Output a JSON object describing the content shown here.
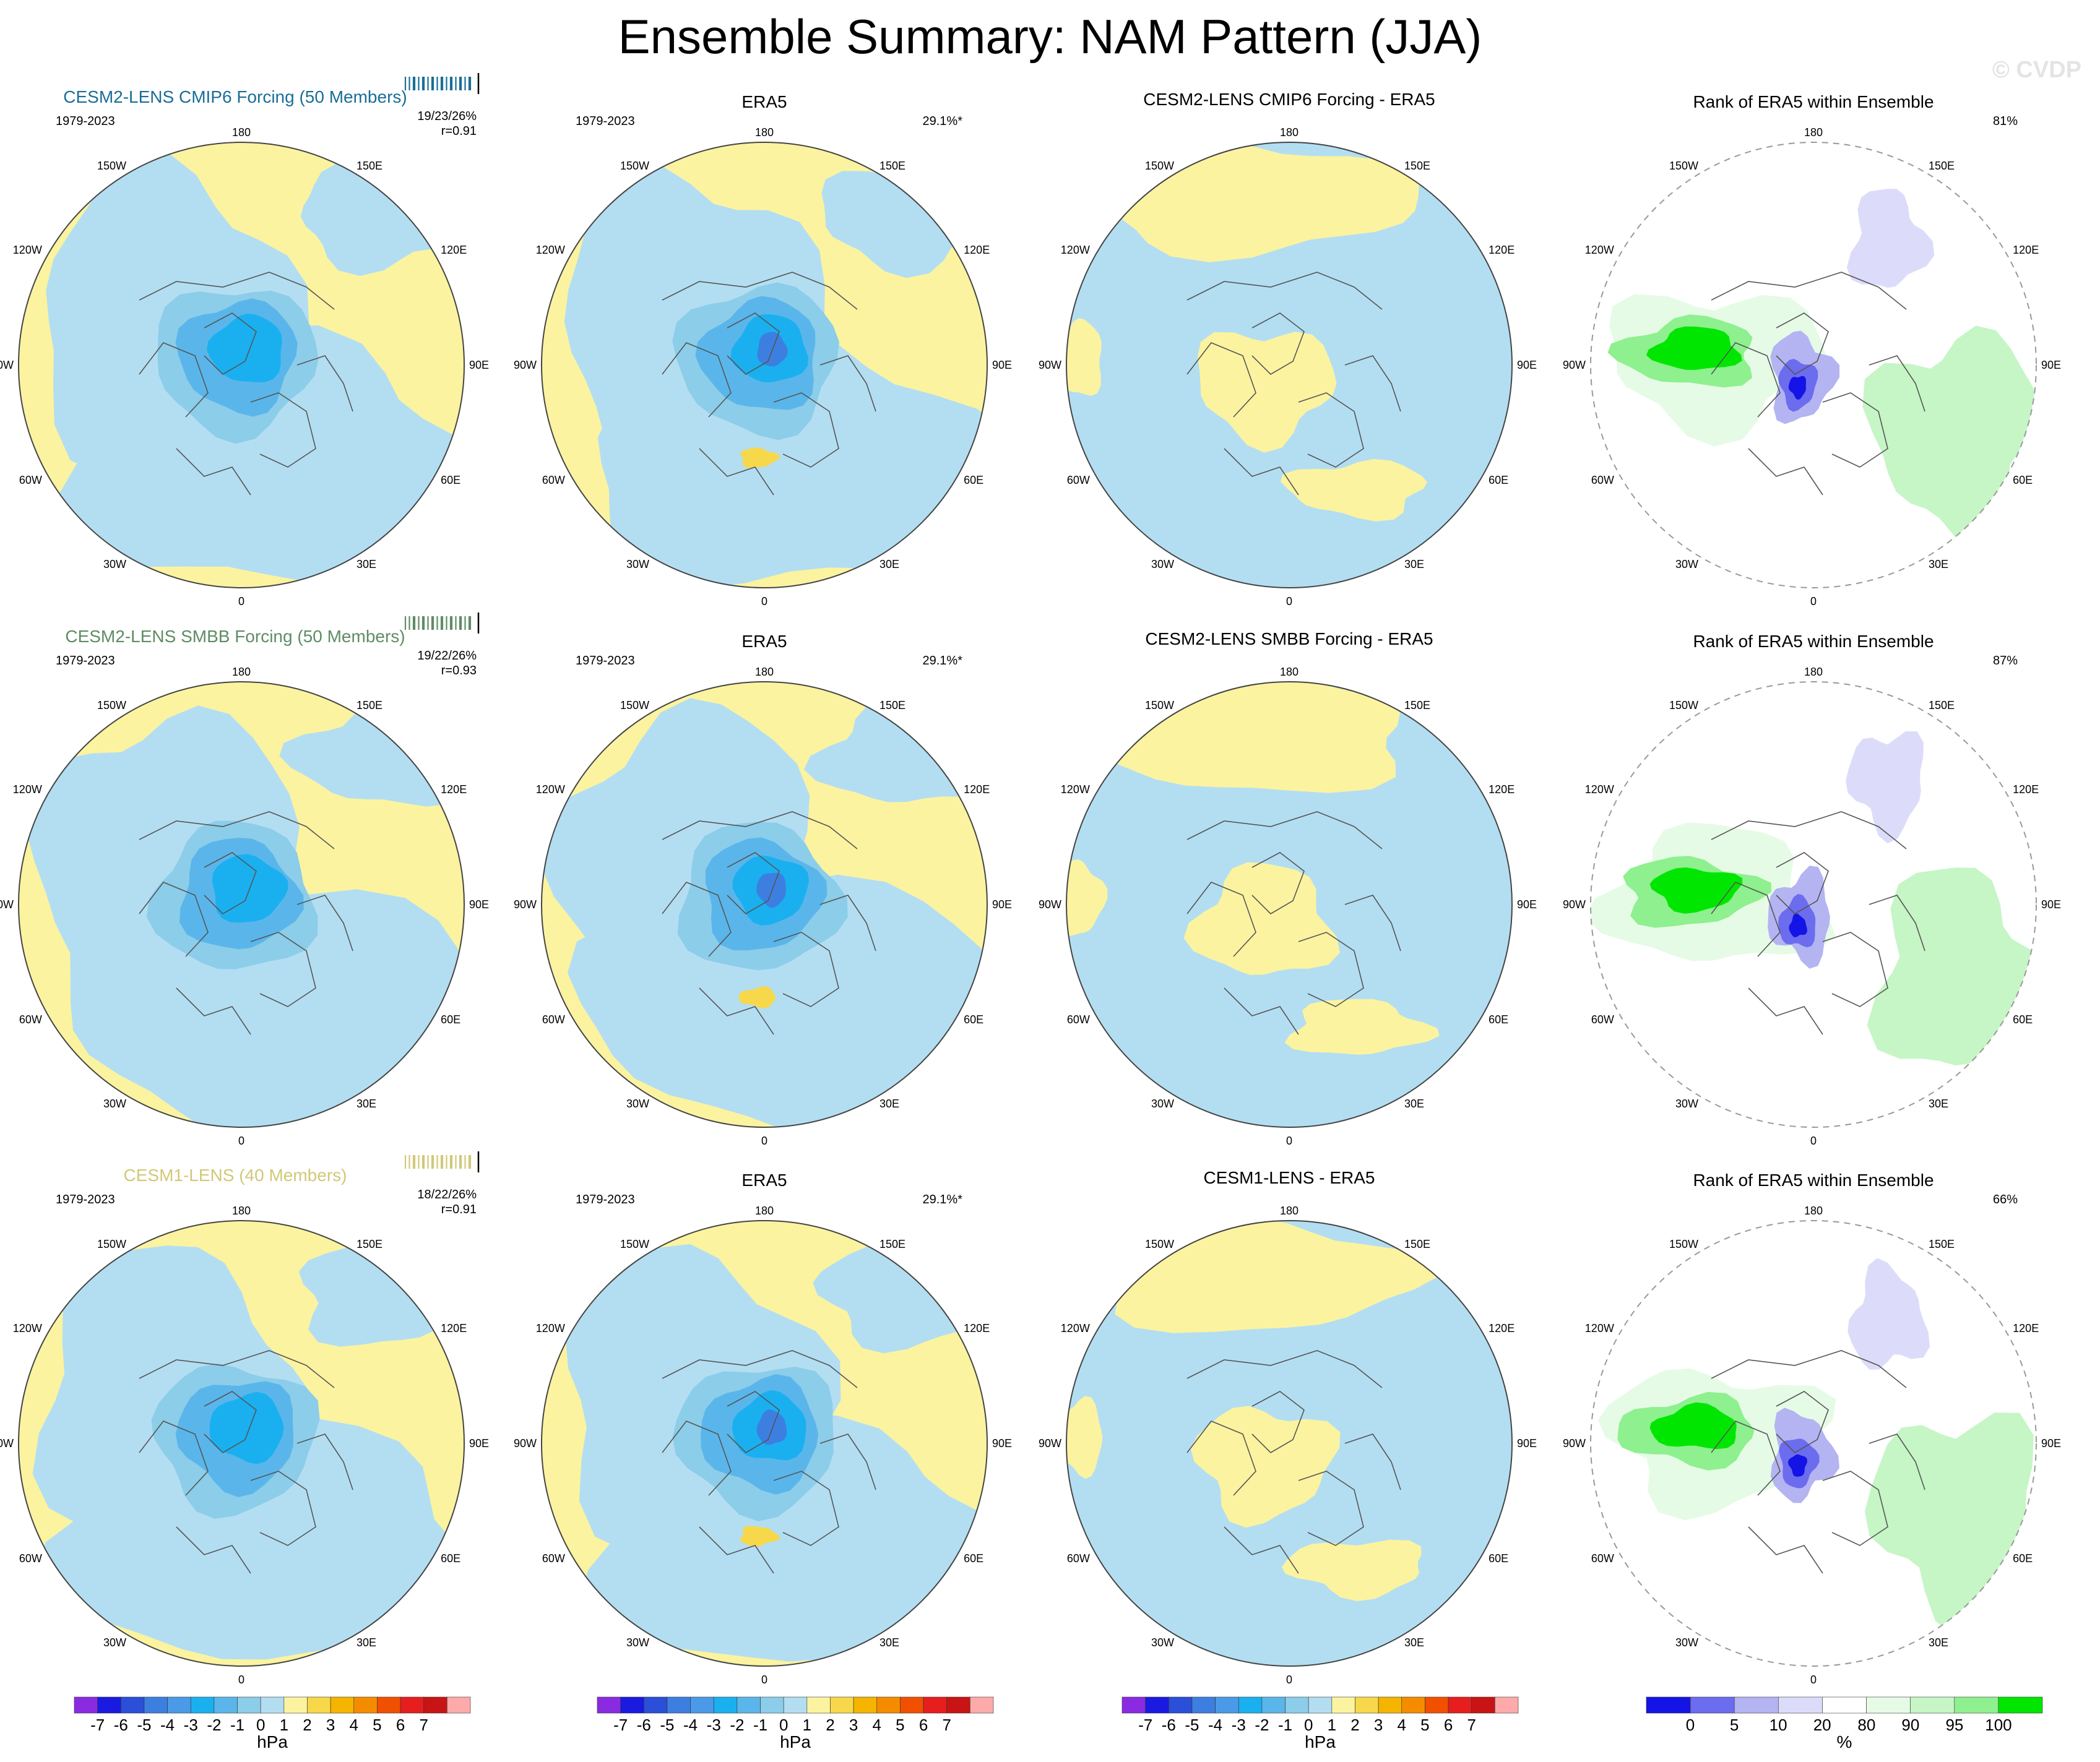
{
  "title": "Ensemble Summary: NAM Pattern (JJA)",
  "watermark": "© CVDP",
  "colors": {
    "land_yellow": "#fbf3a0",
    "sea_blue": "#b3def2",
    "neg1": "#8ccde9",
    "neg2": "#5ab6ea",
    "neg3": "#1ab0f0",
    "neg4": "#3d7fe0",
    "pos1": "#f7d84a",
    "rank_white": "#ffffff",
    "rank_g1": "#e6fbe6",
    "rank_g2": "#c6f5c6",
    "rank_g3": "#8ef08e",
    "rank_g4": "#00e600",
    "rank_b1": "#dcdcfa",
    "rank_b2": "#b4b4f2",
    "rank_b3": "#6c6cee",
    "rank_b4": "#1414e6",
    "cesm2_cmip6": "#1a6e96",
    "cesm2_smbb": "#5f8c64",
    "cesm1": "#d2c878"
  },
  "longitude_labels": {
    "top": "180",
    "bottom": "0",
    "left": "90W",
    "right": "90E",
    "upper_left_outer": "120W",
    "upper_left_inner": "150W",
    "upper_right_inner": "150E",
    "upper_right_outer": "120E",
    "lower_left_outer": "60W",
    "lower_left_inner": "30W",
    "lower_right_inner": "30E",
    "lower_right_outer": "60E"
  },
  "rows": [
    {
      "ensemble_title": "CESM2-LENS CMIP6 Forcing (50 Members)",
      "title_color": "#1a6e96",
      "period": "1979-2023",
      "ensemble_stats": "19/23/26%",
      "ensemble_corr": "r=0.91",
      "obs_title": "ERA5",
      "obs_period": "1979-2023",
      "obs_pct": "29.1%*",
      "diff_title": "CESM2-LENS CMIP6 Forcing - ERA5",
      "rank_title": "Rank of ERA5 within Ensemble",
      "rank_pct": "81%"
    },
    {
      "ensemble_title": "CESM2-LENS SMBB Forcing (50 Members)",
      "title_color": "#5f8c64",
      "period": "1979-2023",
      "ensemble_stats": "19/22/26%",
      "ensemble_corr": "r=0.93",
      "obs_title": "ERA5",
      "obs_period": "1979-2023",
      "obs_pct": "29.1%*",
      "diff_title": "CESM2-LENS SMBB Forcing - ERA5",
      "rank_title": "Rank of ERA5 within Ensemble",
      "rank_pct": "87%"
    },
    {
      "ensemble_title": "CESM1-LENS (40 Members)",
      "title_color": "#d2c878",
      "period": "1979-2023",
      "ensemble_stats": "18/22/26%",
      "ensemble_corr": "r=0.91",
      "obs_title": "ERA5",
      "obs_period": "1979-2023",
      "obs_pct": "29.1%*",
      "diff_title": "CESM1-LENS - ERA5",
      "rank_title": "Rank of ERA5 within Ensemble",
      "rank_pct": "66%"
    }
  ],
  "colorbar_hpa": {
    "unit": "hPa",
    "tick_labels": [
      "-7",
      "-6",
      "-5",
      "-4",
      "-3",
      "-2",
      "-1",
      "0",
      "1",
      "2",
      "3",
      "4",
      "5",
      "6",
      "7"
    ],
    "colors": [
      "#8a2be2",
      "#1a1ae0",
      "#2a4fd8",
      "#3d7fe0",
      "#4a9ae8",
      "#1ab0f0",
      "#5ab6ea",
      "#8ccde9",
      "#b3def2",
      "#fbf3a0",
      "#f7d84a",
      "#f5b400",
      "#f58c00",
      "#f05000",
      "#e61e1e",
      "#c81414",
      "#ffaaaa"
    ]
  },
  "colorbar_rank": {
    "unit": "%",
    "tick_labels": [
      "0",
      "5",
      "10",
      "20",
      "80",
      "90",
      "95",
      "100"
    ],
    "colors": [
      "#1414e6",
      "#6c6cee",
      "#b4b4f2",
      "#dcdcfa",
      "#ffffff",
      "#e6fbe6",
      "#c6f5c6",
      "#8ef08e",
      "#00e600"
    ]
  },
  "chart_data": {
    "type": "heatmap",
    "title": "Ensemble Summary: NAM Pattern (JJA)",
    "projection": "north polar stereographic",
    "panels": [
      {
        "name": "CESM2-LENS CMIP6 Forcing (50 Members)",
        "field": "ensemble mean NAM pattern",
        "units": "hPa",
        "center_min_hpa": -4,
        "pct_variance_explained_min_mean_max": [
          19,
          23,
          26
        ],
        "pattern_correlation": 0.91
      },
      {
        "name": "ERA5",
        "field": "observed NAM pattern",
        "units": "hPa",
        "center_min_hpa": -5,
        "pct_variance_explained": 29.1
      },
      {
        "name": "CESM2-LENS CMIP6 Forcing - ERA5",
        "field": "difference",
        "units": "hPa"
      },
      {
        "name": "Rank of ERA5 within Ensemble",
        "field": "rank",
        "units": "%",
        "pct_area_within": 81
      },
      {
        "name": "CESM2-LENS SMBB Forcing (50 Members)",
        "field": "ensemble mean NAM pattern",
        "units": "hPa",
        "center_min_hpa": -4,
        "pct_variance_explained_min_mean_max": [
          19,
          22,
          26
        ],
        "pattern_correlation": 0.93
      },
      {
        "name": "ERA5",
        "field": "observed NAM pattern",
        "units": "hPa",
        "center_min_hpa": -5,
        "pct_variance_explained": 29.1
      },
      {
        "name": "CESM2-LENS SMBB Forcing - ERA5",
        "field": "difference",
        "units": "hPa"
      },
      {
        "name": "Rank of ERA5 within Ensemble",
        "field": "rank",
        "units": "%",
        "pct_area_within": 87
      },
      {
        "name": "CESM1-LENS (40 Members)",
        "field": "ensemble mean NAM pattern",
        "units": "hPa",
        "center_min_hpa": -3,
        "pct_variance_explained_min_mean_max": [
          18,
          22,
          26
        ],
        "pattern_correlation": 0.91
      },
      {
        "name": "ERA5",
        "field": "observed NAM pattern",
        "units": "hPa",
        "center_min_hpa": -5,
        "pct_variance_explained": 29.1
      },
      {
        "name": "CESM1-LENS - ERA5",
        "field": "difference",
        "units": "hPa"
      },
      {
        "name": "Rank of ERA5 within Ensemble",
        "field": "rank",
        "units": "%",
        "pct_area_within": 66
      }
    ],
    "colorbar_levels_hpa": [
      -7,
      -6,
      -5,
      -4,
      -3,
      -2,
      -1,
      0,
      1,
      2,
      3,
      4,
      5,
      6,
      7
    ],
    "colorbar_levels_rank": [
      0,
      5,
      10,
      20,
      80,
      90,
      95,
      100
    ]
  }
}
